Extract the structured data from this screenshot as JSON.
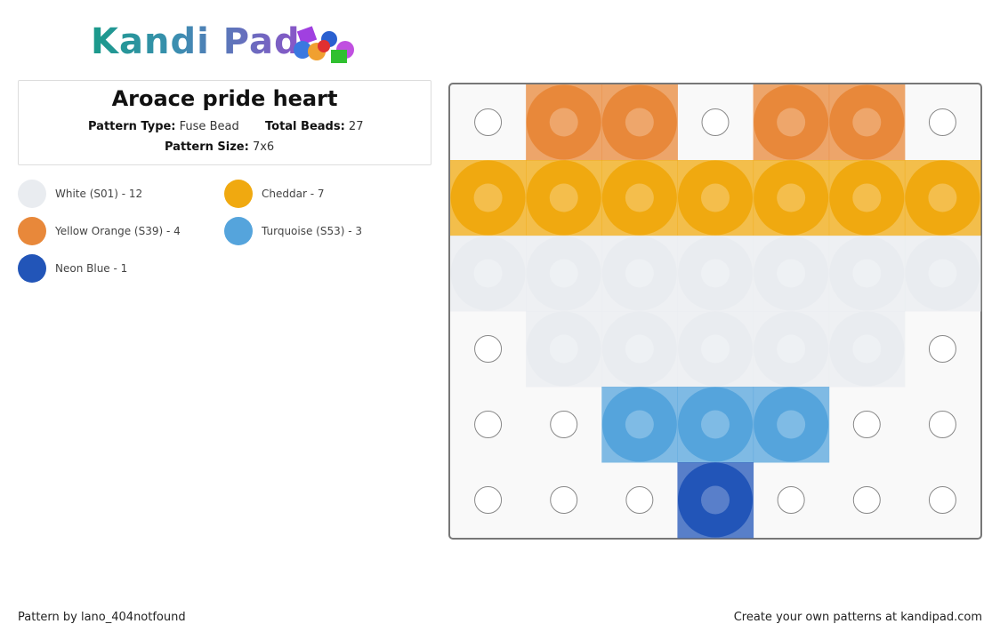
{
  "logo": "Kandi Pad",
  "header": {
    "title": "Aroace pride heart",
    "pattern_type_label": "Pattern Type:",
    "pattern_type": "Fuse Bead",
    "total_beads_label": "Total Beads:",
    "total_beads": "27",
    "pattern_size_label": "Pattern Size:",
    "pattern_size": "7x6"
  },
  "legend": [
    {
      "label": "White (S01) - 12",
      "color": "#e9ecf0"
    },
    {
      "label": "Cheddar - 7",
      "color": "#f0a910"
    },
    {
      "label": "Yellow Orange (S39) - 4",
      "color": "#e8883a"
    },
    {
      "label": "Turquoise (S53) - 3",
      "color": "#55a4dc"
    },
    {
      "label": "Neon Blue - 1",
      "color": "#2255b8"
    }
  ],
  "grid": [
    [
      null,
      2,
      2,
      null,
      2,
      2,
      null
    ],
    [
      1,
      1,
      1,
      1,
      1,
      1,
      1
    ],
    [
      0,
      0,
      0,
      0,
      0,
      0,
      0
    ],
    [
      null,
      0,
      0,
      0,
      0,
      0,
      null
    ],
    [
      null,
      null,
      3,
      3,
      3,
      null,
      null
    ],
    [
      null,
      null,
      null,
      4,
      null,
      null,
      null
    ]
  ],
  "footer": {
    "credit": "Pattern by lano_404notfound",
    "promo": "Create your own patterns at kandipad.com"
  }
}
